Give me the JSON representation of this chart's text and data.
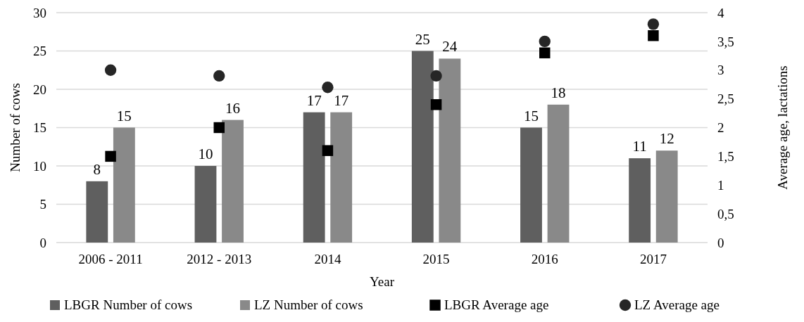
{
  "chart_data": {
    "type": "bar",
    "xlabel": "Year",
    "ylabel": "Number of cows",
    "y2label": "Average age, lactations",
    "categories": [
      "2006 - 2011",
      "2012 - 2013",
      "2014",
      "2015",
      "2016",
      "2017"
    ],
    "series": [
      {
        "name": "LBGR Number of cows",
        "color": "#5f5f5f",
        "values": [
          8,
          10,
          17,
          25,
          15,
          11
        ],
        "value_labels": [
          "8",
          "10",
          "17",
          "25",
          "15",
          "11"
        ]
      },
      {
        "name": "LZ Number of cows",
        "color": "#898989",
        "values": [
          15,
          16,
          17,
          24,
          18,
          12
        ],
        "value_labels": [
          "15",
          "16",
          "17",
          "24",
          "18",
          "12"
        ]
      },
      {
        "name": "LBGR Average age",
        "type": "scatter",
        "axis": "y2",
        "marker": "square",
        "color": "#000000",
        "values": [
          1.5,
          2.0,
          1.6,
          2.4,
          3.3,
          3.6
        ]
      },
      {
        "name": "LZ Average age",
        "type": "scatter",
        "axis": "y2",
        "marker": "circle",
        "color": "#262626",
        "values": [
          3.0,
          2.9,
          2.7,
          2.9,
          3.5,
          3.8
        ]
      }
    ],
    "ylim": [
      0,
      30
    ],
    "yticks": [
      0,
      5,
      10,
      15,
      20,
      25,
      30
    ],
    "y2lim": [
      0,
      4
    ],
    "y2ticks": [
      0,
      {
        "value": 0.5,
        "label": "0,5"
      },
      1,
      {
        "value": 1.5,
        "label": "1,5"
      },
      2,
      {
        "value": 2.5,
        "label": "2,5"
      },
      3,
      {
        "value": 3.5,
        "label": "3,5"
      },
      4
    ],
    "grid": "y",
    "legend": "bottom"
  }
}
